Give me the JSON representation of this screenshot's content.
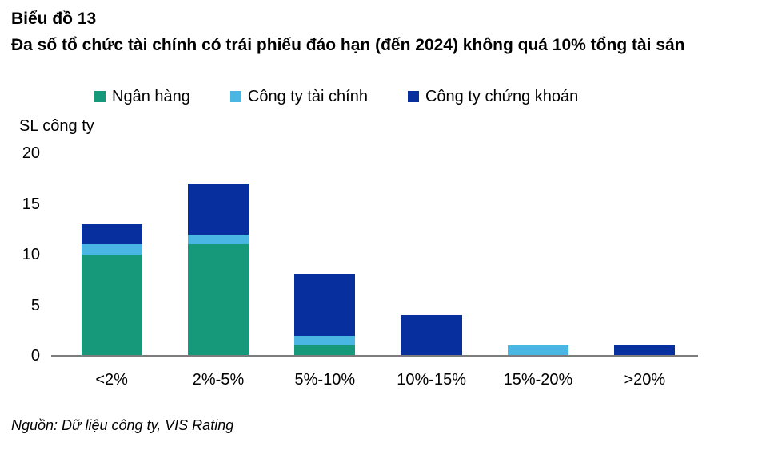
{
  "title": "Biểu đồ 13",
  "subtitle": "Đa số tổ chức tài chính có trái phiếu đáo hạn (đến 2024) không quá 10% tổng tài sản",
  "source": "Nguồn: Dữ liệu công ty, VIS Rating",
  "colors": {
    "green": "#16997A",
    "light_blue": "#4AB6E3",
    "dark_blue": "#072F9E",
    "axis_line": "#7C7C7C",
    "text": "#000000"
  },
  "chart_data": {
    "type": "bar",
    "stacked": true,
    "title": "Đa số tổ chức tài chính có trái phiếu đáo hạn (đến 2024) không quá 10% tổng tài sản",
    "ylabel": "SL công ty",
    "xlabel": "",
    "categories": [
      "<2%",
      "2%-5%",
      "5%-10%",
      "10%-15%",
      "15%-20%",
      ">20%"
    ],
    "series": [
      {
        "name": "Ngân hàng",
        "color": "#16997A",
        "values": [
          10,
          11,
          1,
          0,
          0,
          0
        ]
      },
      {
        "name": "Công ty tài chính",
        "color": "#4AB6E3",
        "values": [
          1,
          1,
          1,
          0,
          1,
          0
        ]
      },
      {
        "name": "Công ty chứng khoán",
        "color": "#072F9E",
        "values": [
          2,
          5,
          6,
          4,
          0,
          1
        ]
      }
    ],
    "totals": [
      13,
      17,
      8,
      4,
      1,
      1
    ],
    "ylim": [
      0,
      20
    ],
    "yticks": [
      0,
      5,
      10,
      15,
      20
    ],
    "grid": false,
    "legend_position": "top"
  }
}
